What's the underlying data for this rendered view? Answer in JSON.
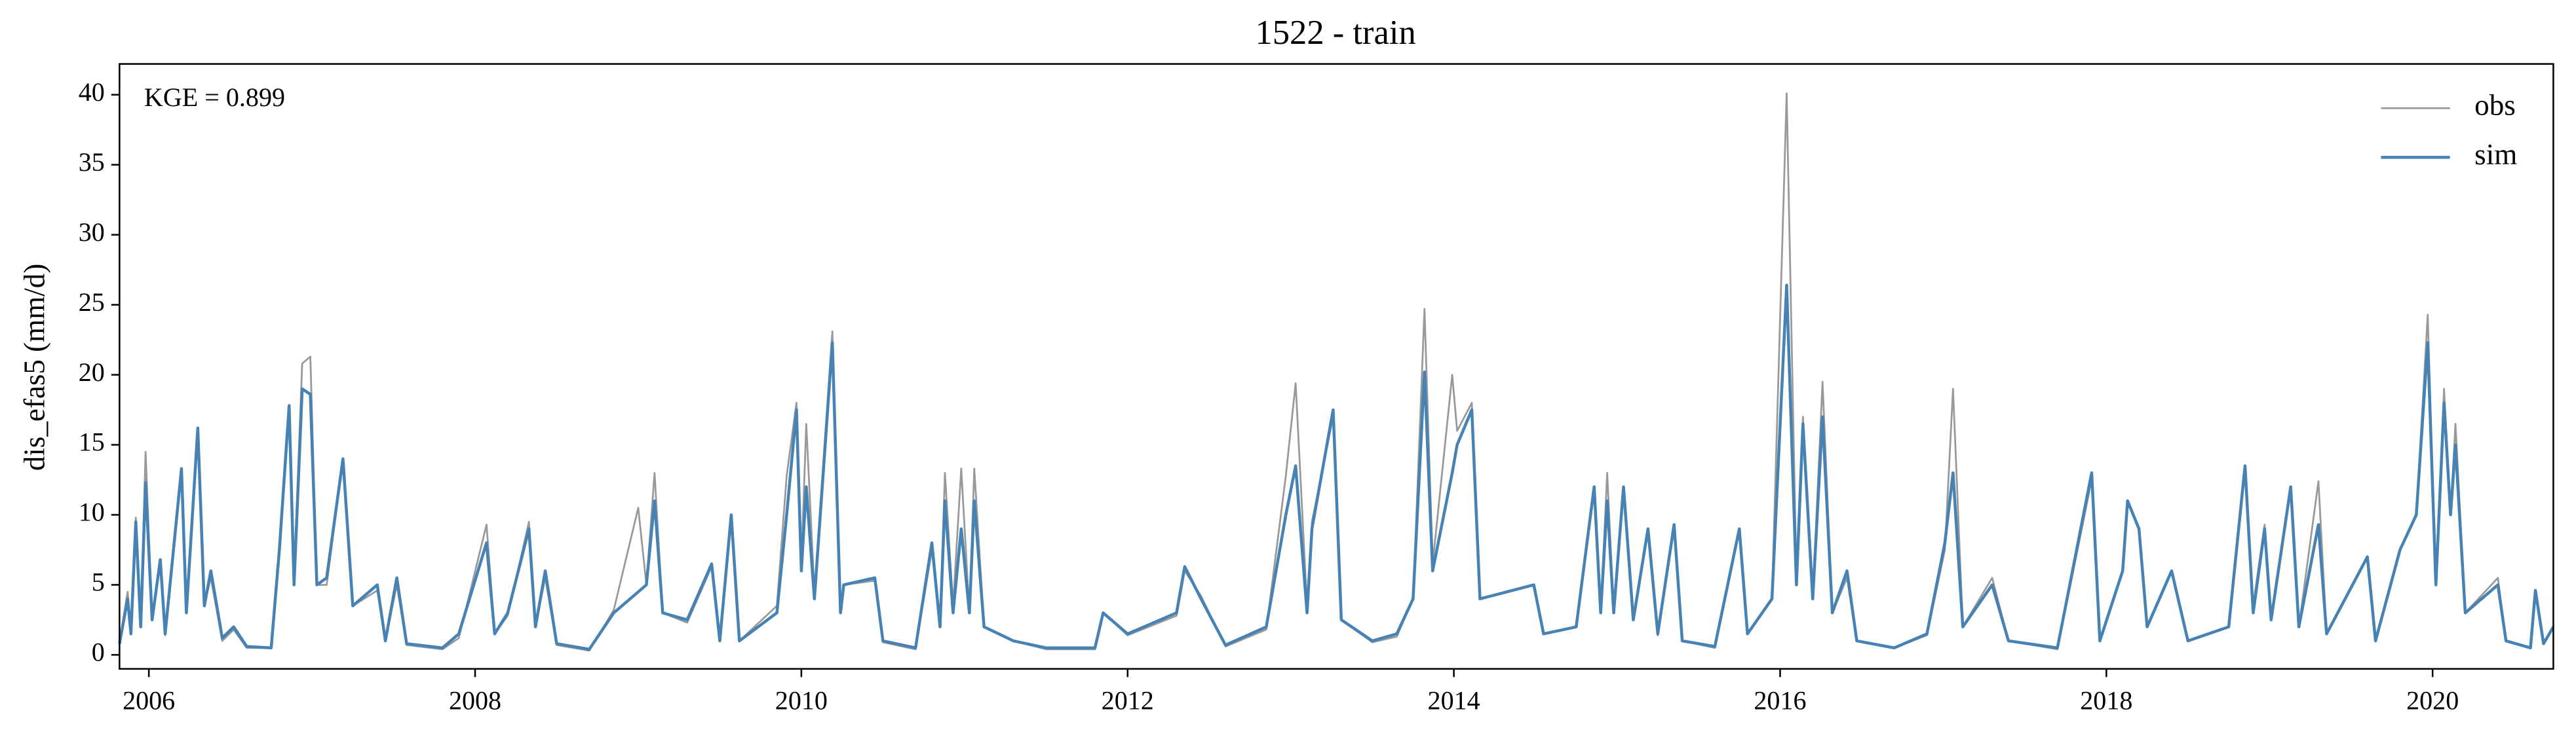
{
  "chart_data": {
    "type": "line",
    "title": "1522 - train",
    "ylabel": "dis_efas5 (mm/d)",
    "annotation": "KGE = 0.899",
    "legend": "upper right",
    "grid": false,
    "xlim": [
      2005.82,
      2020.74
    ],
    "xticks": [
      2006,
      2008,
      2010,
      2012,
      2014,
      2016,
      2018,
      2020
    ],
    "ylim": [
      -1.0,
      42.2
    ],
    "yticks": [
      0,
      5,
      10,
      15,
      20,
      25,
      30,
      35,
      40
    ],
    "x": [
      2005.82,
      2005.87,
      2005.89,
      2005.92,
      2005.95,
      2005.98,
      2006.02,
      2006.07,
      2006.1,
      2006.2,
      2006.23,
      2006.3,
      2006.34,
      2006.38,
      2006.45,
      2006.52,
      2006.6,
      2006.75,
      2006.8,
      2006.86,
      2006.89,
      2006.94,
      2006.99,
      2007.03,
      2007.09,
      2007.19,
      2007.25,
      2007.4,
      2007.45,
      2007.52,
      2007.58,
      2007.8,
      2007.9,
      2008.07,
      2008.12,
      2008.2,
      2008.33,
      2008.37,
      2008.43,
      2008.5,
      2008.7,
      2008.85,
      2009.0,
      2009.05,
      2009.1,
      2009.15,
      2009.3,
      2009.45,
      2009.5,
      2009.57,
      2009.62,
      2009.85,
      2009.91,
      2009.97,
      2010.0,
      2010.03,
      2010.08,
      2010.19,
      2010.24,
      2010.26,
      2010.45,
      2010.5,
      2010.7,
      2010.8,
      2010.85,
      2010.88,
      2010.93,
      2010.98,
      2011.03,
      2011.06,
      2011.12,
      2011.3,
      2011.5,
      2011.8,
      2011.85,
      2012.0,
      2012.3,
      2012.35,
      2012.45,
      2012.6,
      2012.85,
      2012.97,
      2013.03,
      2013.1,
      2013.13,
      2013.26,
      2013.31,
      2013.5,
      2013.65,
      2013.75,
      2013.82,
      2013.87,
      2013.99,
      2014.02,
      2014.11,
      2014.16,
      2014.49,
      2014.55,
      2014.75,
      2014.86,
      2014.9,
      2014.94,
      2014.98,
      2015.04,
      2015.1,
      2015.19,
      2015.25,
      2015.35,
      2015.4,
      2015.6,
      2015.75,
      2015.8,
      2015.95,
      2016.04,
      2016.1,
      2016.14,
      2016.2,
      2016.26,
      2016.32,
      2016.41,
      2016.47,
      2016.7,
      2016.9,
      2017.01,
      2017.06,
      2017.12,
      2017.3,
      2017.4,
      2017.7,
      2017.91,
      2017.96,
      2018.1,
      2018.13,
      2018.2,
      2018.25,
      2018.4,
      2018.5,
      2018.75,
      2018.85,
      2018.9,
      2018.97,
      2019.01,
      2019.13,
      2019.18,
      2019.3,
      2019.35,
      2019.6,
      2019.65,
      2019.8,
      2019.9,
      2019.97,
      2020.02,
      2020.07,
      2020.11,
      2020.14,
      2020.2,
      2020.4,
      2020.45,
      2020.6,
      2020.63,
      2020.68,
      2020.74
    ],
    "series": [
      {
        "name": "obs",
        "color": "#999999",
        "width": 1.1,
        "values": [
          0.9,
          4.5,
          1.6,
          9.8,
          2.2,
          14.5,
          2.6,
          6.5,
          1.4,
          13.0,
          3.2,
          15.5,
          3.6,
          5.5,
          1.0,
          1.8,
          0.5,
          0.5,
          7.0,
          17.5,
          5.5,
          20.8,
          21.3,
          5.0,
          5.0,
          14.0,
          3.5,
          4.6,
          1.0,
          5.0,
          0.7,
          0.4,
          1.2,
          9.3,
          1.5,
          2.8,
          9.5,
          2.0,
          5.5,
          0.7,
          0.3,
          3.2,
          10.5,
          5.0,
          13.0,
          3.0,
          2.3,
          6.3,
          1.0,
          10.0,
          1.0,
          3.5,
          12.8,
          18.0,
          6.5,
          16.5,
          4.5,
          23.1,
          3.0,
          5.0,
          5.3,
          0.9,
          0.4,
          7.5,
          2.0,
          13.0,
          3.5,
          13.3,
          3.0,
          13.3,
          2.0,
          1.0,
          0.4,
          0.4,
          3.0,
          1.4,
          2.8,
          6.0,
          4.2,
          0.6,
          1.8,
          12.8,
          19.4,
          3.5,
          9.5,
          17.0,
          2.5,
          0.9,
          1.3,
          4.0,
          24.7,
          6.5,
          20.0,
          16.0,
          18.0,
          4.0,
          5.0,
          1.5,
          2.0,
          12.0,
          3.0,
          13.0,
          3.0,
          12.0,
          2.5,
          9.0,
          1.4,
          9.0,
          1.0,
          0.5,
          9.0,
          1.5,
          4.0,
          40.1,
          5.5,
          17.0,
          4.0,
          19.5,
          3.0,
          5.5,
          1.0,
          0.5,
          1.4,
          7.5,
          19.0,
          2.0,
          5.5,
          1.0,
          0.4,
          12.5,
          1.0,
          6.0,
          11.0,
          9.0,
          2.0,
          6.0,
          1.0,
          2.0,
          13.5,
          3.5,
          9.3,
          2.5,
          12.0,
          2.0,
          12.4,
          1.5,
          7.0,
          1.0,
          7.5,
          10.0,
          24.3,
          5.0,
          19.0,
          10.0,
          16.5,
          3.0,
          5.5,
          1.0,
          0.5,
          4.6,
          0.8,
          2.0
        ]
      },
      {
        "name": "sim",
        "color": "#4682b4",
        "width": 1.8,
        "values": [
          0.8,
          4.0,
          1.5,
          9.5,
          2.0,
          12.3,
          2.5,
          6.8,
          1.5,
          13.3,
          3.0,
          16.2,
          3.5,
          6.0,
          1.2,
          2.0,
          0.6,
          0.5,
          7.5,
          17.8,
          5.0,
          19.0,
          18.6,
          5.0,
          5.5,
          14.0,
          3.5,
          5.0,
          1.0,
          5.5,
          0.8,
          0.5,
          1.5,
          8.0,
          1.5,
          3.0,
          9.0,
          2.0,
          6.0,
          0.8,
          0.4,
          3.0,
          4.5,
          5.0,
          11.0,
          3.0,
          2.5,
          6.5,
          1.0,
          10.0,
          1.0,
          3.0,
          10.0,
          17.5,
          6.0,
          12.0,
          4.0,
          22.3,
          3.0,
          5.0,
          5.5,
          1.0,
          0.5,
          8.0,
          2.0,
          11.0,
          3.0,
          9.0,
          3.0,
          11.0,
          2.0,
          1.0,
          0.5,
          0.5,
          3.0,
          1.5,
          3.0,
          6.3,
          4.0,
          0.7,
          2.0,
          10.0,
          13.5,
          3.0,
          9.0,
          17.5,
          2.5,
          1.0,
          1.5,
          4.0,
          20.2,
          6.0,
          13.0,
          15.0,
          17.5,
          4.0,
          5.0,
          1.5,
          2.0,
          12.0,
          3.0,
          11.0,
          3.0,
          12.0,
          2.5,
          9.0,
          1.5,
          9.3,
          1.0,
          0.6,
          9.0,
          1.5,
          4.0,
          26.4,
          5.0,
          16.5,
          4.0,
          17.0,
          3.0,
          6.0,
          1.0,
          0.5,
          1.5,
          8.0,
          13.0,
          2.0,
          5.0,
          1.0,
          0.5,
          13.0,
          1.0,
          6.0,
          11.0,
          9.0,
          2.0,
          6.0,
          1.0,
          2.0,
          13.5,
          3.0,
          9.0,
          2.5,
          12.0,
          2.0,
          9.3,
          1.5,
          7.0,
          1.0,
          7.5,
          10.0,
          22.3,
          5.0,
          18.0,
          10.0,
          15.0,
          3.0,
          5.0,
          1.0,
          0.5,
          4.6,
          0.8,
          2.0
        ]
      }
    ]
  }
}
